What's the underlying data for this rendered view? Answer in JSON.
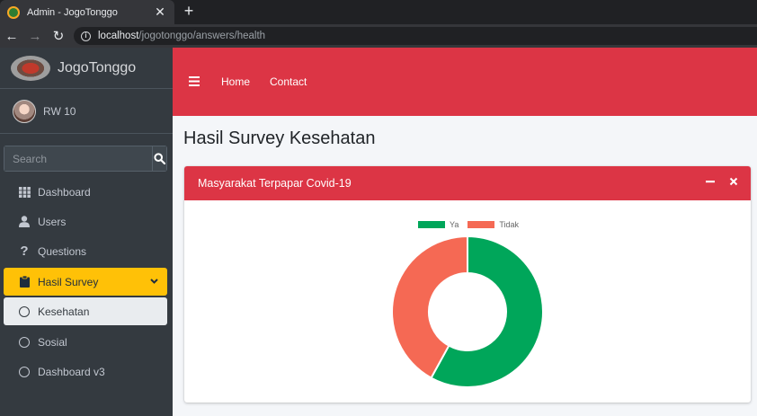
{
  "browser": {
    "tab_title": "Admin - JogoTonggo",
    "url_host": "localhost",
    "url_path": "/jogotonggo/answers/health",
    "close_glyph": "✕",
    "new_tab_glyph": "+"
  },
  "sidebar": {
    "brand": "JogoTonggo",
    "user": "RW 10",
    "search_placeholder": "Search",
    "items": [
      {
        "label": "Dashboard",
        "icon": "grid-icon"
      },
      {
        "label": "Users",
        "icon": "user-icon"
      },
      {
        "label": "Questions",
        "icon": "question-icon"
      },
      {
        "label": "Hasil Survey",
        "icon": "clipboard-icon"
      },
      {
        "label": "Kesehatan",
        "icon": "circle-icon"
      },
      {
        "label": "Sosial",
        "icon": "circle-icon"
      },
      {
        "label": "Dashboard v3",
        "icon": "circle-icon"
      }
    ]
  },
  "navbar": {
    "links": [
      "Home",
      "Contact"
    ]
  },
  "content": {
    "page_title": "Hasil Survey Kesehatan",
    "card_title": "Masyarakat Terpapar Covid-19"
  },
  "colors": {
    "primary_red": "#dc3545",
    "active_yellow": "#ffc107",
    "ya_green": "#00a65a",
    "tidak_coral": "#f56954"
  },
  "chart_data": {
    "type": "pie",
    "variant": "doughnut",
    "categories": [
      "Ya",
      "Tidak"
    ],
    "values": [
      58,
      42
    ],
    "colors": [
      "#00a65a",
      "#f56954"
    ],
    "legend_position": "top"
  }
}
